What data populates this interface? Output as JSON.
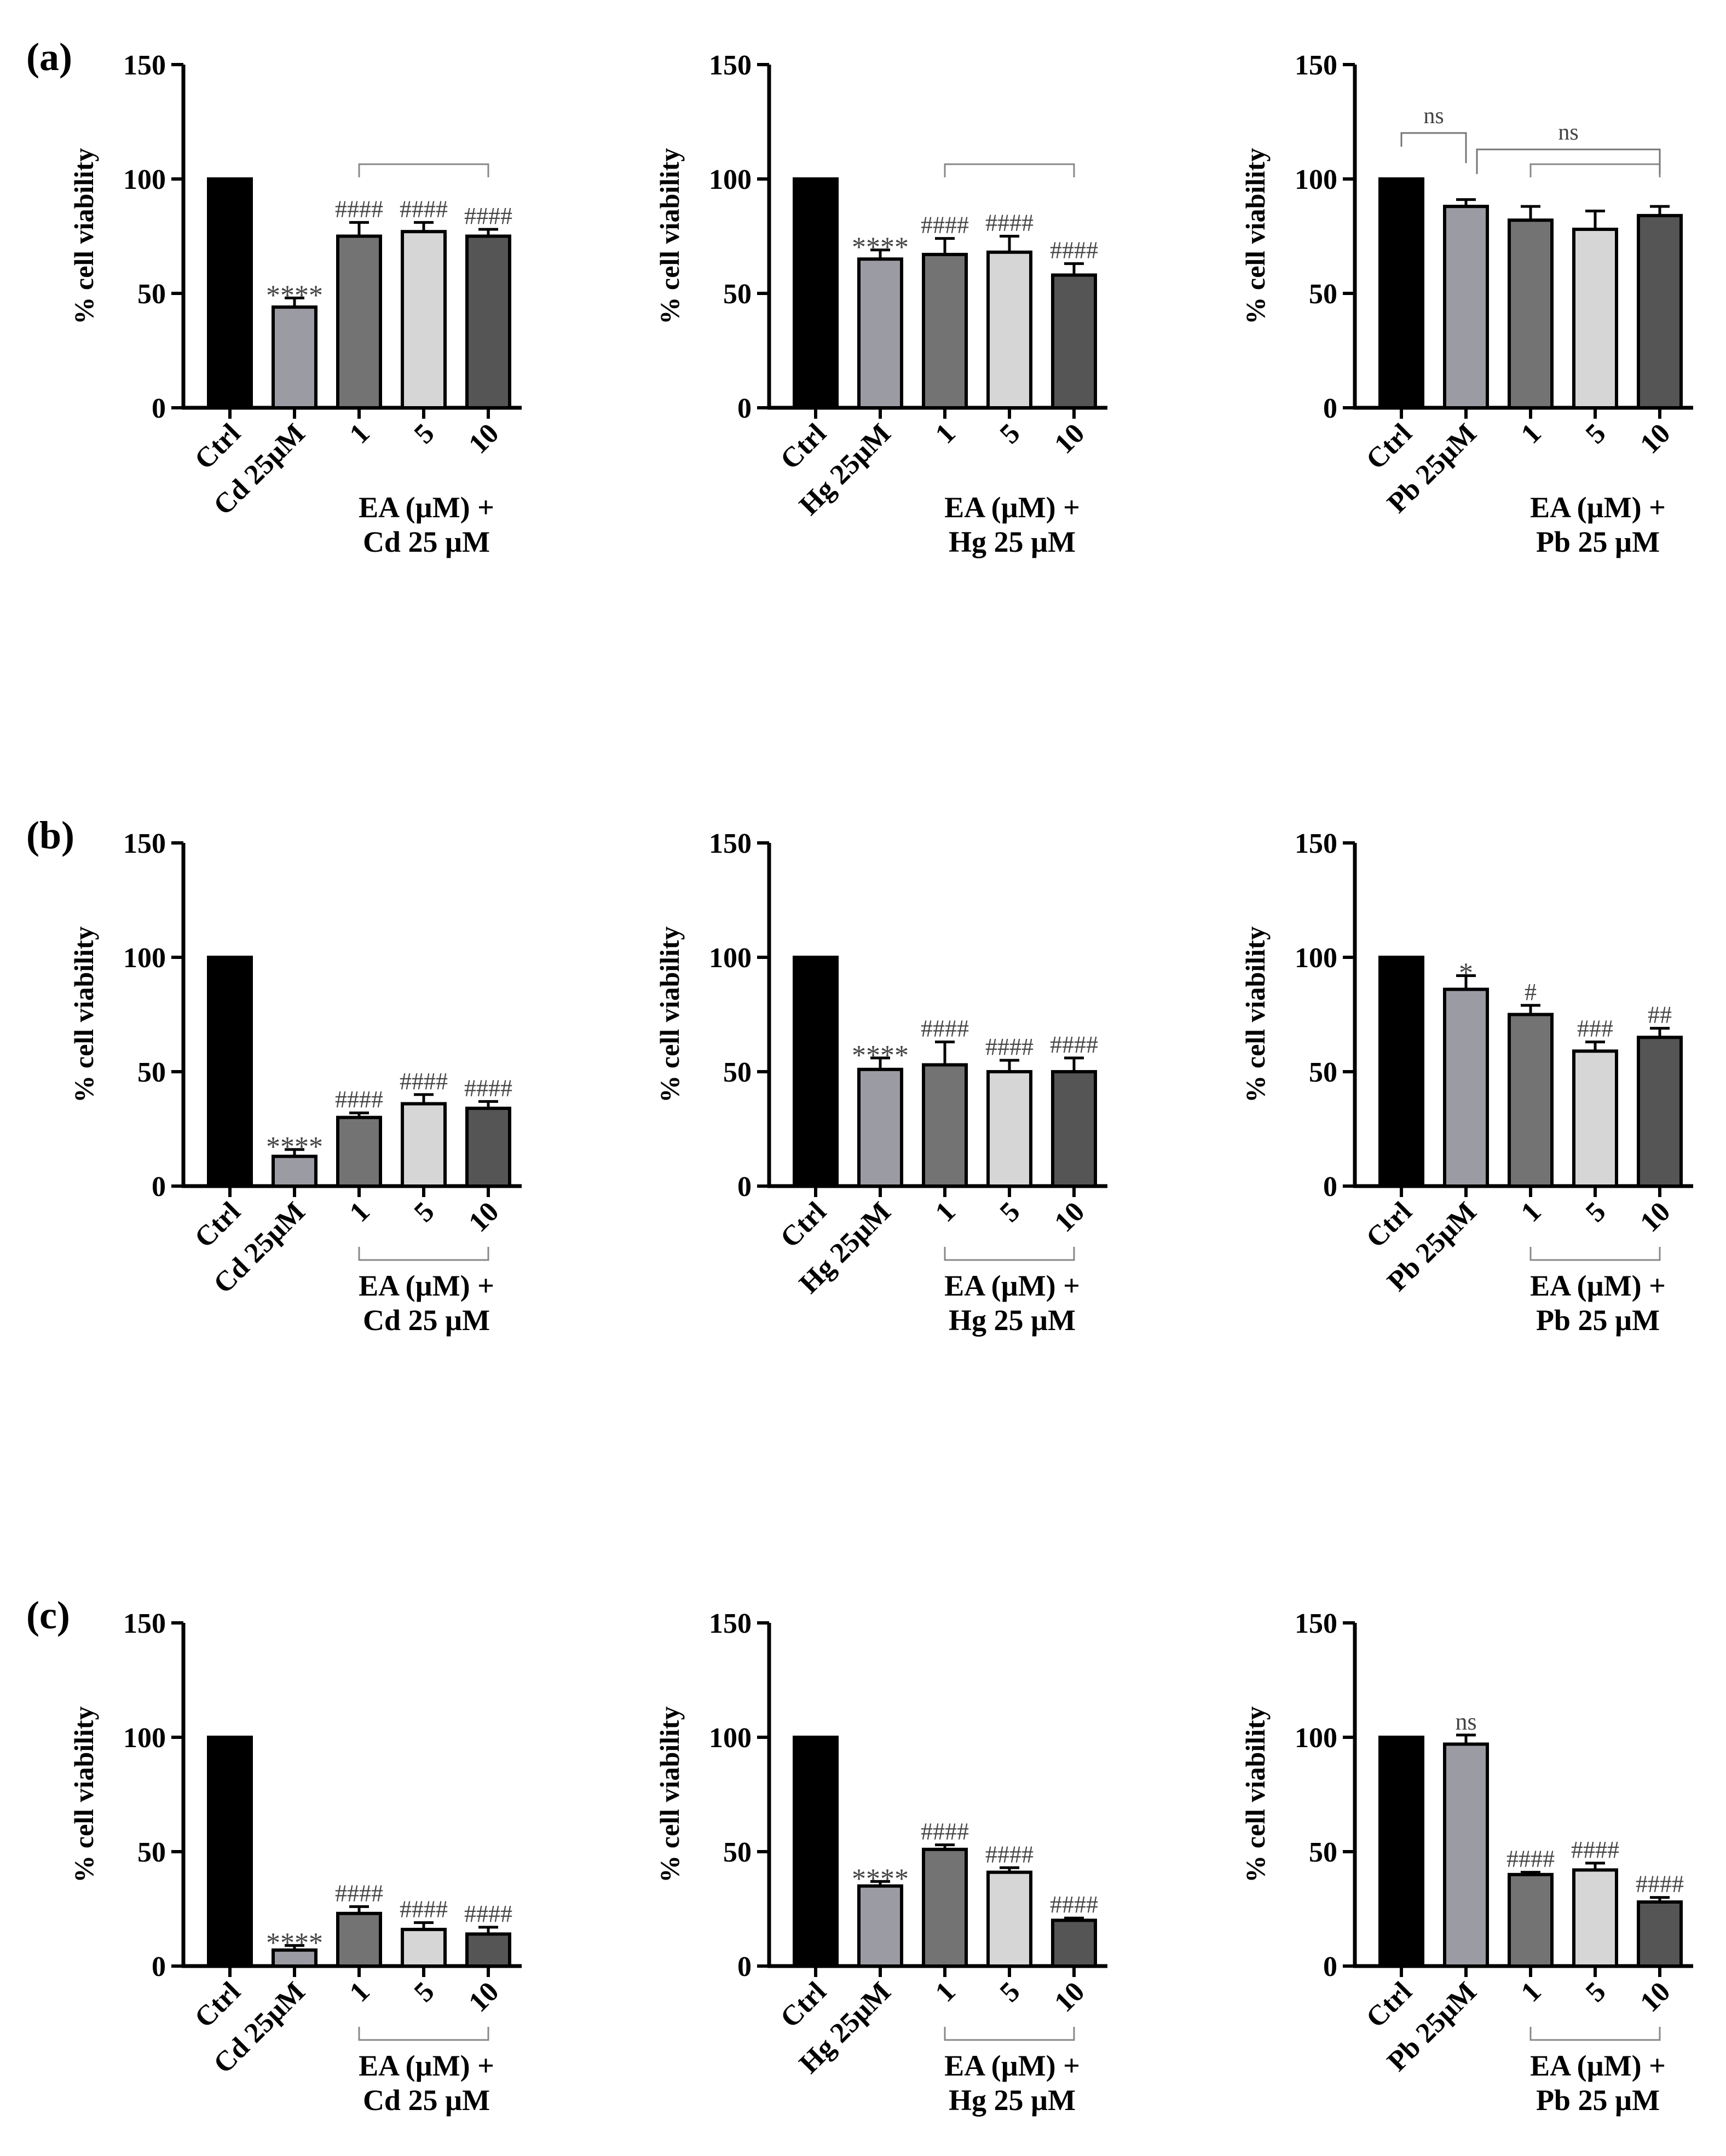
{
  "figure": {
    "row_labels": [
      "(a)",
      "(b)",
      "(c)"
    ],
    "ylabel": "% cell viability",
    "yticks": [
      0,
      50,
      100,
      150
    ],
    "ylim": [
      0,
      150
    ],
    "bar_colors": [
      "#000000",
      "#9b9ba3",
      "#737373",
      "#d6d6d6",
      "#555555"
    ]
  },
  "chart_data": [
    {
      "type": "bar",
      "panel": "(a)",
      "metal": "Cd",
      "categories": [
        "Ctrl",
        "Cd 25µM",
        "1",
        "5",
        "10"
      ],
      "values": [
        100,
        44,
        75,
        77,
        75
      ],
      "errors": [
        0,
        4,
        6,
        4,
        3
      ],
      "annotations": [
        "",
        "****",
        "####",
        "####",
        "####"
      ],
      "group_label_1": "EA (µM) +",
      "group_label_2": "Cd 25 µM",
      "ylabel": "% cell viability",
      "ylim": [
        0,
        150
      ]
    },
    {
      "type": "bar",
      "panel": "(a)",
      "metal": "Hg",
      "categories": [
        "Ctrl",
        "Hg 25µM",
        "1",
        "5",
        "10"
      ],
      "values": [
        100,
        65,
        67,
        68,
        58
      ],
      "errors": [
        0,
        4,
        7,
        7,
        5
      ],
      "annotations": [
        "",
        "****",
        "####",
        "####",
        "####"
      ],
      "group_label_1": "EA (µM) +",
      "group_label_2": "Hg 25 µM",
      "ylabel": "% cell viability",
      "ylim": [
        0,
        150
      ]
    },
    {
      "type": "bar",
      "panel": "(a)",
      "metal": "Pb",
      "categories": [
        "Ctrl",
        "Pb 25µM",
        "1",
        "5",
        "10"
      ],
      "values": [
        100,
        88,
        82,
        78,
        84
      ],
      "errors": [
        0,
        3,
        6,
        8,
        4
      ],
      "annotations": [
        "",
        "",
        "",
        "",
        ""
      ],
      "ns_labels": [
        "ns",
        "ns"
      ],
      "group_label_1": "EA (µM) +",
      "group_label_2": "Pb 25 µM",
      "ylabel": "% cell viability",
      "ylim": [
        0,
        150
      ]
    },
    {
      "type": "bar",
      "panel": "(b)",
      "metal": "Cd",
      "categories": [
        "Ctrl",
        "Cd 25µM",
        "1",
        "5",
        "10"
      ],
      "values": [
        100,
        13,
        30,
        36,
        34
      ],
      "errors": [
        0,
        3,
        2,
        4,
        3
      ],
      "annotations": [
        "",
        "****",
        "####",
        "####",
        "####"
      ],
      "group_label_1": "EA (µM) +",
      "group_label_2": "Cd 25 µM",
      "ylabel": "% cell viability",
      "ylim": [
        0,
        150
      ]
    },
    {
      "type": "bar",
      "panel": "(b)",
      "metal": "Hg",
      "categories": [
        "Ctrl",
        "Hg 25µM",
        "1",
        "5",
        "10"
      ],
      "values": [
        100,
        51,
        53,
        50,
        50
      ],
      "errors": [
        0,
        5,
        10,
        5,
        6
      ],
      "annotations": [
        "",
        "****",
        "####",
        "####",
        "####"
      ],
      "group_label_1": "EA (µM) +",
      "group_label_2": "Hg 25 µM",
      "ylabel": "% cell viability",
      "ylim": [
        0,
        150
      ]
    },
    {
      "type": "bar",
      "panel": "(b)",
      "metal": "Pb",
      "categories": [
        "Ctrl",
        "Pb 25µM",
        "1",
        "5",
        "10"
      ],
      "values": [
        100,
        86,
        75,
        59,
        65
      ],
      "errors": [
        0,
        6,
        4,
        4,
        4
      ],
      "annotations": [
        "",
        "*",
        "#",
        "###",
        "##"
      ],
      "group_label_1": "EA (µM) +",
      "group_label_2": "Pb 25 µM",
      "ylabel": "% cell viability",
      "ylim": [
        0,
        150
      ]
    },
    {
      "type": "bar",
      "panel": "(c)",
      "metal": "Cd",
      "categories": [
        "Ctrl",
        "Cd 25µM",
        "1",
        "5",
        "10"
      ],
      "values": [
        100,
        7,
        23,
        16,
        14
      ],
      "errors": [
        0,
        2,
        3,
        3,
        3
      ],
      "annotations": [
        "",
        "****",
        "####",
        "####",
        "####"
      ],
      "group_label_1": "EA (µM) +",
      "group_label_2": "Cd 25 µM",
      "ylabel": "% cell viability",
      "ylim": [
        0,
        150
      ]
    },
    {
      "type": "bar",
      "panel": "(c)",
      "metal": "Hg",
      "categories": [
        "Ctrl",
        "Hg 25µM",
        "1",
        "5",
        "10"
      ],
      "values": [
        100,
        35,
        51,
        41,
        20
      ],
      "errors": [
        0,
        2,
        2,
        2,
        1
      ],
      "annotations": [
        "",
        "****",
        "####",
        "####",
        "####"
      ],
      "group_label_1": "EA (µM) +",
      "group_label_2": "Hg 25 µM",
      "ylabel": "% cell viability",
      "ylim": [
        0,
        150
      ]
    },
    {
      "type": "bar",
      "panel": "(c)",
      "metal": "Pb",
      "categories": [
        "Ctrl",
        "Pb 25µM",
        "1",
        "5",
        "10"
      ],
      "values": [
        100,
        97,
        40,
        42,
        28
      ],
      "errors": [
        0,
        4,
        1,
        3,
        2
      ],
      "annotations": [
        "",
        "ns",
        "####",
        "####",
        "####"
      ],
      "group_label_1": "EA (µM) +",
      "group_label_2": "Pb 25 µM",
      "ylabel": "% cell viability",
      "ylim": [
        0,
        150
      ]
    }
  ]
}
